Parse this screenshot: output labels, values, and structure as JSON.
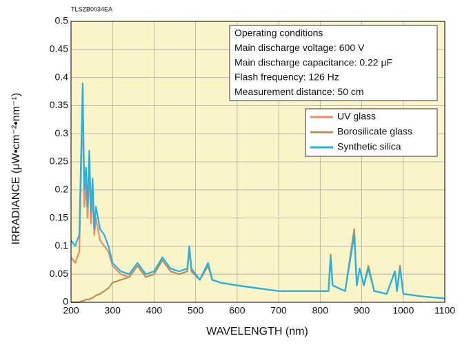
{
  "chart_data": {
    "type": "line",
    "annotation": "TLSZB0034EA",
    "xlabel": "WAVELENGTH (nm)",
    "ylabel": "IRRADIANCE  (μW•cm⁻²•nm⁻¹)",
    "conditions": [
      "Operating conditions",
      "Main discharge voltage: 600 V",
      "Main discharge capacitance: 0.22 μF",
      "Flash frequency: 126 Hz",
      "Measurement distance: 50 cm"
    ],
    "x": [
      200,
      210,
      220,
      228,
      232,
      236,
      240,
      244,
      248,
      252,
      256,
      260,
      270,
      280,
      290,
      300,
      320,
      340,
      360,
      380,
      400,
      420,
      440,
      460,
      480,
      485,
      490,
      510,
      530,
      540,
      560,
      600,
      650,
      700,
      750,
      800,
      820,
      825,
      830,
      860,
      882,
      888,
      895,
      905,
      916,
      930,
      960,
      980,
      985,
      992,
      1000,
      1050,
      1100
    ],
    "series": [
      {
        "name": "UV glass",
        "color": "#f0886a",
        "values": [
          0.08,
          0.07,
          0.09,
          0.35,
          0.17,
          0.21,
          0.15,
          0.24,
          0.14,
          0.19,
          0.12,
          0.15,
          0.11,
          0.1,
          0.09,
          0.065,
          0.05,
          0.045,
          0.065,
          0.045,
          0.05,
          0.075,
          0.055,
          0.05,
          0.055,
          0.095,
          0.055,
          0.04,
          0.065,
          0.04,
          0.035,
          0.03,
          0.025,
          0.02,
          0.02,
          0.02,
          0.02,
          0.085,
          0.03,
          0.02,
          0.13,
          0.03,
          0.06,
          0.03,
          0.065,
          0.02,
          0.015,
          0.055,
          0.02,
          0.065,
          0.015,
          0.01,
          0.007
        ]
      },
      {
        "name": "Borosilicate glass",
        "color": "#b8905a",
        "values": [
          0,
          0,
          0,
          0.003,
          0.003,
          0.005,
          0.005,
          0.005,
          0.007,
          0.008,
          0.01,
          0.012,
          0.015,
          0.02,
          0.025,
          0.035,
          0.04,
          0.045,
          0.065,
          0.045,
          0.05,
          0.075,
          0.055,
          0.05,
          0.055,
          0.095,
          0.055,
          0.04,
          0.065,
          0.04,
          0.035,
          0.03,
          0.025,
          0.02,
          0.02,
          0.02,
          0.02,
          0.085,
          0.03,
          0.02,
          0.13,
          0.03,
          0.06,
          0.03,
          0.065,
          0.02,
          0.015,
          0.055,
          0.02,
          0.065,
          0.015,
          0.01,
          0.007
        ]
      },
      {
        "name": "Synthetic silica",
        "color": "#1fb4e6",
        "values": [
          0.11,
          0.1,
          0.12,
          0.39,
          0.2,
          0.24,
          0.17,
          0.27,
          0.16,
          0.22,
          0.13,
          0.17,
          0.13,
          0.12,
          0.1,
          0.07,
          0.055,
          0.05,
          0.07,
          0.05,
          0.055,
          0.08,
          0.06,
          0.055,
          0.06,
          0.1,
          0.06,
          0.04,
          0.07,
          0.04,
          0.035,
          0.03,
          0.025,
          0.02,
          0.02,
          0.02,
          0.02,
          0.08,
          0.03,
          0.02,
          0.12,
          0.03,
          0.06,
          0.03,
          0.06,
          0.02,
          0.015,
          0.055,
          0.02,
          0.06,
          0.015,
          0.01,
          0.007
        ]
      }
    ],
    "xlim": [
      200,
      1100
    ],
    "xticks": [
      200,
      300,
      400,
      500,
      600,
      700,
      800,
      900,
      1000,
      1100
    ],
    "ylim": [
      0,
      0.5
    ],
    "yticks": [
      0,
      0.05,
      0.1,
      0.15,
      0.2,
      0.25,
      0.3,
      0.35,
      0.4,
      0.45,
      0.5
    ],
    "grid": true,
    "background": "#faf5c8"
  }
}
